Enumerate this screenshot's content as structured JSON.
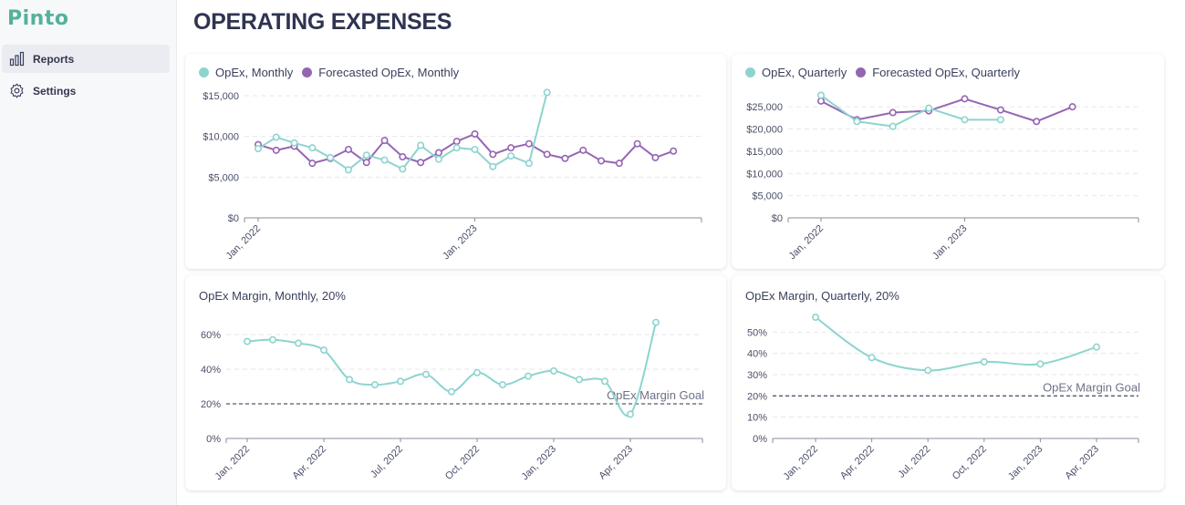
{
  "app": {
    "logo": "Pinto"
  },
  "sidebar": {
    "items": [
      {
        "label": "Reports",
        "icon": "bar-chart-icon",
        "active": true
      },
      {
        "label": "Settings",
        "icon": "gear-icon",
        "active": false
      }
    ]
  },
  "page": {
    "title": "OPERATING EXPENSES"
  },
  "colors": {
    "teal": "#8dd4cf",
    "purple": "#9565b4",
    "grid": "#e6e7ec",
    "goal": "#555a6e"
  },
  "chart_data": [
    {
      "type": "line",
      "legend_position": "top-left",
      "ylim": [
        0,
        15000
      ],
      "yticks": [
        0,
        5000,
        10000,
        15000
      ],
      "yticklabels": [
        "$0",
        "$5,000",
        "$10,000",
        "$15,000"
      ],
      "xticklabels": [
        "Jan, 2022",
        "Jan, 2023"
      ],
      "xtick_index": [
        0,
        12
      ],
      "x_count": 25,
      "grid": true,
      "series": [
        {
          "name": "OpEx, Monthly",
          "color": "#8dd4cf",
          "values": [
            8500,
            9900,
            9200,
            8600,
            7400,
            5900,
            7700,
            7100,
            6000,
            8900,
            7200,
            8600,
            8400,
            6300,
            7600,
            6700,
            15400
          ]
        },
        {
          "name": "Forecasted OpEx, Monthly",
          "color": "#9565b4",
          "values": [
            9000,
            8300,
            8800,
            6700,
            7300,
            8400,
            6800,
            9500,
            7500,
            6800,
            8000,
            9400,
            10300,
            7800,
            8600,
            9100,
            7800,
            7300,
            8300,
            7000,
            6700,
            9100,
            7400,
            8200
          ]
        }
      ]
    },
    {
      "type": "line",
      "legend_position": "top-left",
      "ylim": [
        0,
        27500
      ],
      "yticks": [
        0,
        5000,
        10000,
        15000,
        20000,
        25000
      ],
      "yticklabels": [
        "$0",
        "$5,000",
        "$10,000",
        "$15,000",
        "$20,000",
        "$25,000"
      ],
      "xticklabels": [
        "Jan, 2022",
        "Jan, 2023"
      ],
      "xtick_index": [
        0,
        4
      ],
      "x_count": 9,
      "grid": true,
      "series": [
        {
          "name": "OpEx, Quarterly",
          "color": "#8dd4cf",
          "values": [
            27600,
            21700,
            20600,
            24700,
            22100,
            22100
          ]
        },
        {
          "name": "Forecasted OpEx, Quarterly",
          "color": "#9565b4",
          "values": [
            26300,
            22100,
            23700,
            24100,
            26800,
            24300,
            21700,
            25000
          ]
        }
      ]
    },
    {
      "type": "line",
      "title": "OpEx Margin, Monthly, 20%",
      "ylim": [
        0,
        70
      ],
      "yticks": [
        0,
        20,
        40,
        60
      ],
      "yticklabels": [
        "0%",
        "20%",
        "40%",
        "60%"
      ],
      "xticklabels": [
        "Jan, 2022",
        "Apr, 2022",
        "Jul, 2022",
        "Oct, 2022",
        "Jan, 2023",
        "Apr, 2023"
      ],
      "xtick_index": [
        0,
        3,
        6,
        9,
        12,
        15
      ],
      "x_count": 18,
      "grid": true,
      "goal": {
        "value": 20,
        "label": "OpEx Margin Goal"
      },
      "series": [
        {
          "name": "",
          "color": "#8dd4cf",
          "values": [
            56,
            57,
            55,
            51,
            34,
            31,
            33,
            37,
            27,
            38,
            31,
            36,
            39,
            34,
            33,
            14,
            67
          ]
        }
      ]
    },
    {
      "type": "line",
      "title": "OpEx Margin, Quarterly, 20%",
      "ylim": [
        0,
        57
      ],
      "yticks": [
        0,
        10,
        20,
        30,
        40,
        50
      ],
      "yticklabels": [
        "0%",
        "10%",
        "20%",
        "30%",
        "40%",
        "50%"
      ],
      "xticklabels": [
        "Jan, 2022",
        "Apr, 2022",
        "Jul, 2022",
        "Oct, 2022",
        "Jan, 2023",
        "Apr, 2023"
      ],
      "xtick_index": [
        0,
        1,
        2,
        3,
        4,
        5
      ],
      "x_count": 6,
      "grid": true,
      "goal": {
        "value": 20,
        "label": "OpEx Margin Goal"
      },
      "series": [
        {
          "name": "",
          "color": "#8dd4cf",
          "values": [
            57,
            38,
            32,
            36,
            35,
            43
          ]
        }
      ]
    }
  ]
}
